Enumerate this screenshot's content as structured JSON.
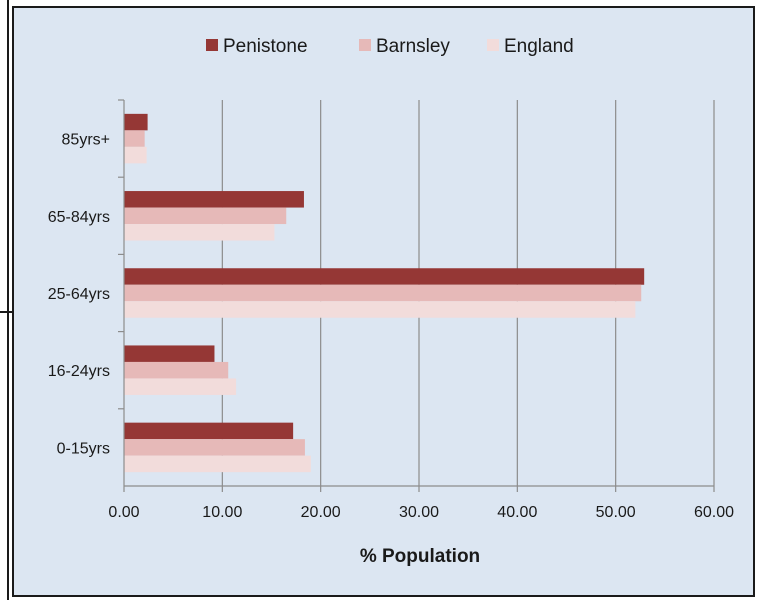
{
  "chart_data": {
    "type": "bar",
    "orientation": "horizontal",
    "categories": [
      "0-15yrs",
      "16-24yrs",
      "25-64yrs",
      "65-84yrs",
      "85yrs+"
    ],
    "series": [
      {
        "name": "Penistone",
        "color": "#953735",
        "values": [
          17.2,
          9.2,
          52.9,
          18.3,
          2.4
        ]
      },
      {
        "name": "Barnsley",
        "color": "#e6b9b8",
        "values": [
          18.4,
          10.6,
          52.6,
          16.5,
          2.1
        ]
      },
      {
        "name": "England",
        "color": "#f2dcdb",
        "values": [
          19.0,
          11.4,
          52.0,
          15.3,
          2.3
        ]
      }
    ],
    "xlabel": "% Population",
    "xlim": [
      0,
      60
    ],
    "xticks": [
      "0.00",
      "10.00",
      "20.00",
      "30.00",
      "40.00",
      "50.00",
      "60.00"
    ],
    "grid": true,
    "legend": "top",
    "background": "#dce6f2"
  }
}
